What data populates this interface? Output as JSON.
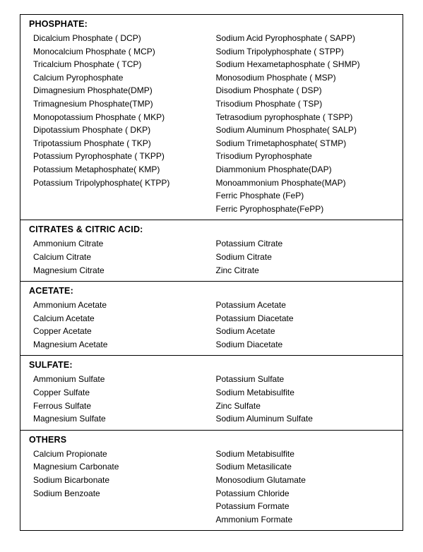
{
  "sections": [
    {
      "title": "PHOSPHATE:",
      "left": [
        "Dicalcium Phosphate ( DCP)",
        "Monocalcium Phosphate ( MCP)",
        "Tricalcium Phosphate ( TCP)",
        "Calcium  Pyrophosphate",
        "Dimagnesium Phosphate(DMP)",
        "Trimagnesium Phosphate(TMP)",
        "Monopotassium Phosphate ( MKP)",
        "Dipotassium Phosphate ( DKP)",
        "Tripotassium Phosphate ( TKP)",
        "Potassium Pyrophosphate ( TKPP)",
        "Potassium Metaphosphate( KMP)",
        "Potassium Tripolyphosphate( KTPP)"
      ],
      "right": [
        "Sodium Acid Pyrophosphate ( SAPP)",
        "Sodium Tripolyphosphate ( STPP)",
        "Sodium Hexametaphosphate ( SHMP)",
        "Monosodium Phosphate ( MSP)",
        "Disodium Phosphate ( DSP)",
        "Trisodium Phosphate ( TSP)",
        "Tetrasodium pyrophosphate ( TSPP)",
        "Sodium Aluminum Phosphate( SALP)",
        "Sodium Trimetaphosphate( STMP)",
        "Trisodium  Pyrophosphate",
        "Diammonium Phosphate(DAP)",
        "Monoammonium Phosphate(MAP)",
        "Ferric Phosphate (FeP)",
        "Ferric Pyrophosphate(FePP)"
      ]
    },
    {
      "title": "CITRATES & CITRIC ACID:",
      "left": [
        "Ammonium Citrate",
        "Calcium Citrate",
        "Magnesium Citrate"
      ],
      "right": [
        "Potassium Citrate",
        "Sodium  Citrate",
        "Zinc  Citrate"
      ]
    },
    {
      "title": "ACETATE:",
      "left": [
        "Ammonium  Acetate",
        "Calcium  Acetate",
        "Copper  Acetate",
        "Magnesium  Acetate"
      ],
      "right": [
        "Potassium  Acetate",
        "Potassium  Diacetate",
        "Sodium  Acetate",
        "Sodium  Diacetate"
      ]
    },
    {
      "title": "SULFATE:",
      "left": [
        "Ammonium  Sulfate",
        "Copper  Sulfate",
        "Ferrous  Sulfate",
        "Magnesium  Sulfate"
      ],
      "right": [
        "Potassium  Sulfate",
        "Sodium  Metabisulfite",
        "Zinc  Sulfate",
        "Sodium  Aluminum  Sulfate"
      ]
    },
    {
      "title": "OTHERS",
      "left": [
        "Calcium  Propionate",
        "Magnesium  Carbonate",
        "Sodium  Bicarbonate",
        "Sodium  Benzoate"
      ],
      "right": [
        "Sodium  Metabisulfite",
        "Sodium  Metasilicate",
        "Monosodium  Glutamate",
        "Potassium  Chloride",
        "Potassium  Formate",
        "Ammonium  Formate"
      ]
    }
  ]
}
